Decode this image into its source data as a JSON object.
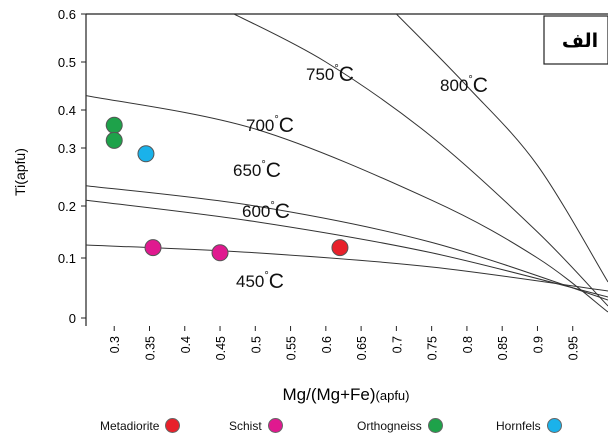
{
  "chart_data": {
    "type": "scatter",
    "title": "الف",
    "xlabel": "Mg/(Mg+Fe)",
    "xlabel_unit": "(apfu)",
    "ylabel": "Ti(apfu)",
    "xlim": [
      0.26,
      1.0
    ],
    "ylim": [
      0,
      0.6
    ],
    "x_ticks": [
      "0.3",
      "0.35",
      "0.4",
      "0.45",
      "0.5",
      "0.55",
      "0.6",
      "0.65",
      "0.7",
      "0.75",
      "0.8",
      "0.85",
      "0.9",
      "0.95"
    ],
    "y_ticks": [
      "0",
      "0.1",
      "0.2",
      "0.3",
      "0.4",
      "0.5",
      "0.6"
    ],
    "y_tick_values": [
      0,
      0.1,
      0.2,
      0.3,
      0.4,
      0.5,
      0.6
    ],
    "y_pixel_scale": "uneven (axis spacing as printed)",
    "isotherms": [
      {
        "label": "450",
        "unit": "°C",
        "x": [
          0.26,
          0.5,
          0.75,
          1.0
        ],
        "y": [
          0.125,
          0.11,
          0.085,
          0.045
        ]
      },
      {
        "label": "600",
        "unit": "°C",
        "x": [
          0.26,
          0.5,
          0.75,
          1.0
        ],
        "y": [
          0.21,
          0.17,
          0.11,
          0.035
        ]
      },
      {
        "label": "650",
        "unit": "°C",
        "x": [
          0.26,
          0.5,
          0.75,
          1.0
        ],
        "y": [
          0.235,
          0.2,
          0.13,
          0.03
        ]
      },
      {
        "label": "700",
        "unit": "°C",
        "x": [
          0.26,
          0.5,
          0.75,
          0.9,
          1.0
        ],
        "y": [
          0.43,
          0.35,
          0.21,
          0.1,
          0.01
        ]
      },
      {
        "label": "750",
        "unit": "°C",
        "x": [
          0.47,
          0.6,
          0.75,
          0.9,
          1.0
        ],
        "y": [
          0.6,
          0.5,
          0.33,
          0.15,
          0.02
        ]
      },
      {
        "label": "800",
        "unit": "°C",
        "x": [
          0.7,
          0.8,
          0.9,
          1.0
        ],
        "y": [
          0.6,
          0.45,
          0.27,
          0.06
        ]
      }
    ],
    "series": [
      {
        "name": "Metadiorite",
        "color": "#e8202a",
        "points": [
          {
            "x": 0.62,
            "y": 0.12
          }
        ]
      },
      {
        "name": "Schist",
        "color": "#e0198f",
        "points": [
          {
            "x": 0.355,
            "y": 0.12
          },
          {
            "x": 0.45,
            "y": 0.11
          }
        ]
      },
      {
        "name": "Orthogneiss",
        "color": "#1ea24a",
        "points": [
          {
            "x": 0.3,
            "y": 0.36
          },
          {
            "x": 0.3,
            "y": 0.32
          }
        ]
      },
      {
        "name": "Hornfels",
        "color": "#1ab2ea",
        "points": [
          {
            "x": 0.345,
            "y": 0.29
          }
        ]
      }
    ],
    "grid": false,
    "legend_placement": "bottom"
  }
}
